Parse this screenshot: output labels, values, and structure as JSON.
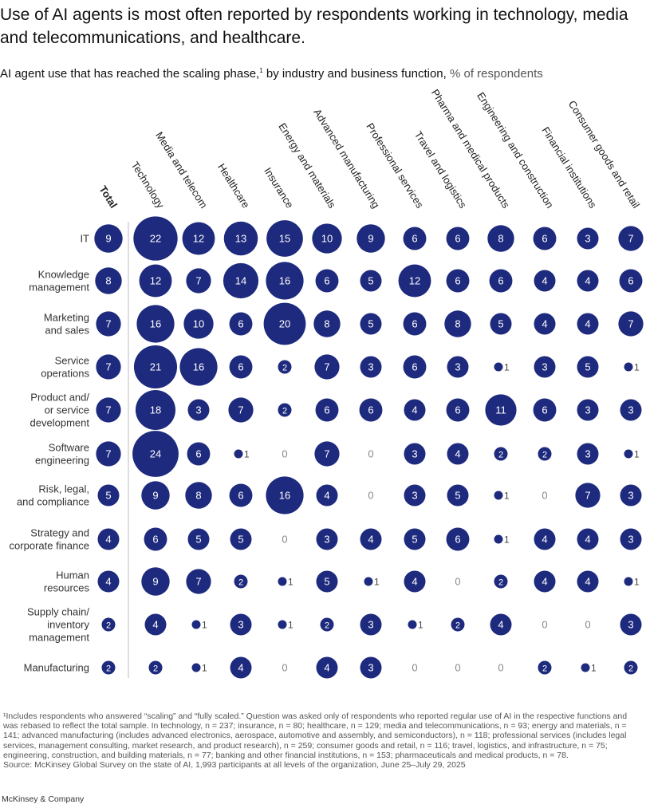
{
  "title": "Use of AI agents is most often reported by respondents working in technology, media and telecommunications, and healthcare.",
  "subtitle": {
    "text": "AI agent use that has reached the scaling phase,",
    "footnote_marker": "1",
    "text2": " by industry and business function,",
    "unit": "% of respondents"
  },
  "colors": {
    "bubble": "#1d2a7d",
    "text_on_bubble": "#ffffff",
    "divider": "#bdbdbd"
  },
  "chart_data": {
    "type": "bubble-matrix",
    "value_unit": "% of respondents",
    "columns": [
      "Total",
      "Technology",
      "Media and telecom",
      "Healthcare",
      "Insurance",
      "Energy and materials",
      "Advanced manufacturing",
      "Professional services",
      "Travel and logistics",
      "Pharma and medical products",
      "Engineering and construction",
      "Financial institutions",
      "Consumer goods and retail"
    ],
    "rows": [
      "IT",
      "Knowledge management",
      "Marketing and sales",
      "Service operations",
      "Product and/or service development",
      "Software engineering",
      "Risk, legal, and compliance",
      "Strategy and corporate finance",
      "Human resources",
      "Supply chain/inventory management",
      "Manufacturing"
    ],
    "row_display": [
      [
        "IT"
      ],
      [
        "Knowledge",
        "management"
      ],
      [
        "Marketing",
        "and sales"
      ],
      [
        "Service",
        "operations"
      ],
      [
        "Product and/",
        "or service",
        "development"
      ],
      [
        "Software",
        "engineering"
      ],
      [
        "Risk, legal,",
        "and compliance"
      ],
      [
        "Strategy and",
        "corporate finance"
      ],
      [
        "Human",
        "resources"
      ],
      [
        "Supply chain/",
        "inventory",
        "management"
      ],
      [
        "Manufacturing"
      ]
    ],
    "values": [
      [
        9,
        22,
        12,
        13,
        15,
        10,
        9,
        6,
        6,
        8,
        6,
        3,
        7
      ],
      [
        8,
        12,
        7,
        14,
        16,
        6,
        5,
        12,
        6,
        6,
        4,
        4,
        6
      ],
      [
        7,
        16,
        10,
        6,
        20,
        8,
        5,
        6,
        8,
        5,
        4,
        4,
        7
      ],
      [
        7,
        21,
        16,
        6,
        2,
        7,
        3,
        6,
        3,
        1,
        3,
        5,
        1
      ],
      [
        7,
        18,
        3,
        7,
        2,
        6,
        6,
        4,
        6,
        11,
        6,
        3,
        3
      ],
      [
        7,
        24,
        6,
        1,
        0,
        7,
        0,
        3,
        4,
        2,
        2,
        3,
        1
      ],
      [
        5,
        9,
        8,
        6,
        16,
        4,
        0,
        3,
        5,
        1,
        0,
        7,
        3
      ],
      [
        4,
        6,
        5,
        5,
        0,
        3,
        4,
        5,
        6,
        1,
        4,
        4,
        3
      ],
      [
        4,
        9,
        7,
        2,
        1,
        5,
        1,
        4,
        0,
        2,
        4,
        4,
        1
      ],
      [
        2,
        4,
        1,
        3,
        1,
        2,
        3,
        1,
        2,
        4,
        0,
        0,
        3
      ],
      [
        2,
        2,
        1,
        4,
        0,
        4,
        3,
        0,
        0,
        0,
        2,
        1,
        2
      ]
    ],
    "display_overrides": [
      {
        "row": 5,
        "col": 6,
        "label": "0"
      }
    ]
  },
  "footnote": {
    "text": "¹Includes respondents who answered “scaling” and “fully scaled.” Question was asked only of respondents who reported regular use of AI in the respective functions and was rebased to reflect the total sample. In technology, n = 237; insurance, n = 80; healthcare, n = 129; media and telecommunications, n = 93; energy and materials, n = 141; advanced manufacturing (includes advanced electronics, aerospace, automotive and assembly, and semiconductors), n = 118; professional services (includes legal services, management consulting, market research, and product research), n = 259; consumer goods and retail, n = 116; travel, logistics, and infrastructure, n = 75; engineering, construction, and building materials, n = 77; banking and other financial institutions, n = 153; pharmaceuticals and medical products, n = 78.",
    "source": "Source: McKinsey Global Survey on the state of AI, 1,993 participants at all levels of the organization, June 25–July 29, 2025"
  },
  "brand": "McKinsey & Company"
}
